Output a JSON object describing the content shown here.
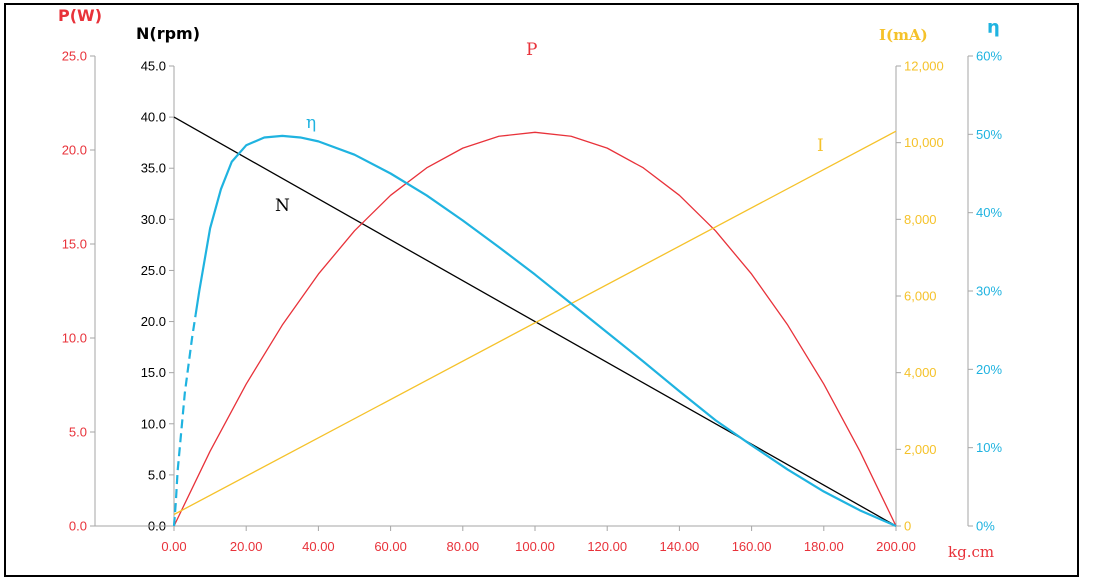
{
  "chart_data": {
    "type": "line",
    "title": "",
    "xlabel": "kg.cm",
    "x_ticks": [
      "0.00",
      "20.00",
      "40.00",
      "60.00",
      "80.00",
      "100.00",
      "120.00",
      "140.00",
      "160.00",
      "180.00",
      "200.00"
    ],
    "xlim": [
      0,
      200
    ],
    "axes": {
      "power": {
        "label": "P(W)",
        "ylim": [
          0,
          25
        ],
        "ticks": [
          "0.0",
          "5.0",
          "10.0",
          "15.0",
          "20.0",
          "25.0"
        ],
        "color": "#e8323a"
      },
      "speed": {
        "label": "N(rpm)",
        "ylim": [
          0,
          45
        ],
        "ticks": [
          "0.0",
          "5.0",
          "10.0",
          "15.0",
          "20.0",
          "25.0",
          "30.0",
          "35.0",
          "40.0",
          "45.0"
        ],
        "color": "#000000"
      },
      "current": {
        "label": "I(mA)",
        "ylim": [
          0,
          12000
        ],
        "ticks": [
          "0",
          "2,000",
          "4,000",
          "6,000",
          "8,000",
          "10,000",
          "12,000"
        ],
        "color": "#f5c22a"
      },
      "efficiency": {
        "label": "η",
        "ylim": [
          0,
          60
        ],
        "ticks": [
          "0%",
          "10%",
          "20%",
          "30%",
          "40%",
          "50%",
          "60%"
        ],
        "color": "#1fb3e0"
      }
    },
    "series": [
      {
        "name": "N",
        "axis": "speed",
        "color": "#000000",
        "x": [
          0,
          200
        ],
        "y": [
          40,
          0
        ]
      },
      {
        "name": "P",
        "axis": "power",
        "color": "#e8323a",
        "x": [
          0,
          10,
          20,
          30,
          40,
          50,
          60,
          70,
          80,
          90,
          100,
          110,
          120,
          130,
          140,
          150,
          160,
          170,
          180,
          190,
          200
        ],
        "y": [
          0,
          3.98,
          7.55,
          10.69,
          13.4,
          15.7,
          17.59,
          19.05,
          20.1,
          20.73,
          20.94,
          20.73,
          20.1,
          19.05,
          17.59,
          15.7,
          13.4,
          10.69,
          7.55,
          3.98,
          0
        ]
      },
      {
        "name": "I",
        "axis": "current",
        "color": "#f5c22a",
        "x": [
          0,
          200
        ],
        "y": [
          300,
          10300
        ]
      },
      {
        "name": "η",
        "axis": "efficiency",
        "color": "#1fb3e0",
        "x": [
          0,
          0.5,
          1,
          2,
          3,
          5,
          7,
          10,
          13,
          16,
          20,
          25,
          30,
          35,
          40,
          50,
          60,
          70,
          80,
          90,
          100,
          110,
          120,
          130,
          140,
          150,
          160,
          170,
          180,
          190,
          200
        ],
        "y": [
          0,
          3,
          7,
          12,
          17,
          24,
          30,
          38,
          43,
          46.5,
          48.6,
          49.6,
          49.8,
          49.6,
          49.1,
          47.4,
          45.0,
          42.2,
          39.0,
          35.6,
          32.1,
          28.4,
          24.7,
          21.0,
          17.2,
          13.5,
          10.3,
          7.2,
          4.4,
          2.0,
          0
        ],
        "dashed_x_range": [
          0,
          6
        ]
      }
    ],
    "curve_labels": [
      {
        "text": "P",
        "series": "P"
      },
      {
        "text": "N",
        "series": "N"
      },
      {
        "text": "η",
        "series": "η"
      },
      {
        "text": "I",
        "series": "I"
      }
    ],
    "grid": false,
    "legend": "none"
  }
}
